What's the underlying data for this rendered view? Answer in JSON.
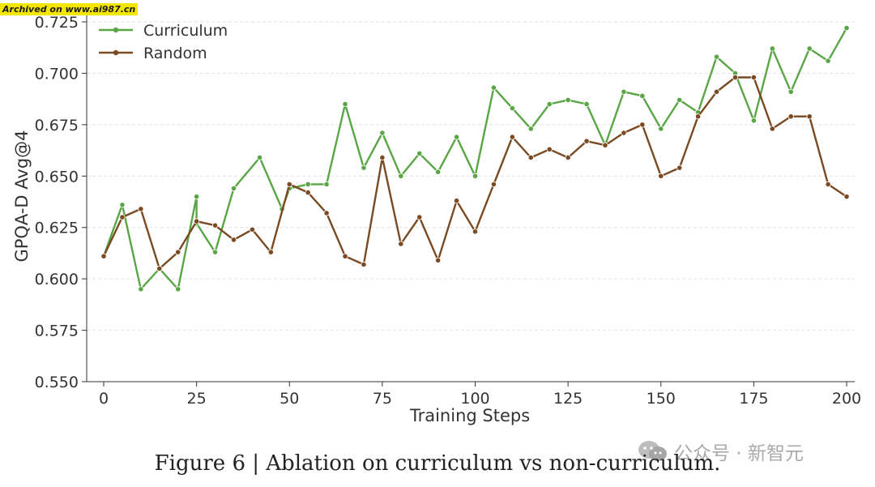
{
  "chart_data": {
    "type": "line",
    "title": "",
    "xlabel": "Training Steps",
    "ylabel": "GPQA-D Avg@4",
    "xlim": [
      0,
      200
    ],
    "ylim": [
      0.55,
      0.725
    ],
    "xticks": [
      0,
      25,
      50,
      75,
      100,
      125,
      150,
      175,
      200
    ],
    "yticks": [
      0.55,
      0.575,
      0.6,
      0.625,
      0.65,
      0.675,
      0.7,
      0.725
    ],
    "ytick_labels": [
      "0.550",
      "0.575",
      "0.600",
      "0.625",
      "0.650",
      "0.675",
      "0.700",
      "0.725"
    ],
    "grid": "horizontal",
    "legend_position": "top-left",
    "series": [
      {
        "name": "Curriculum",
        "color": "#5aa646",
        "points": [
          [
            0,
            0.611
          ],
          [
            5,
            0.636
          ],
          [
            10,
            0.595
          ],
          [
            15,
            0.605
          ],
          [
            20,
            0.595
          ],
          [
            25,
            0.64
          ],
          [
            25,
            0.627
          ],
          [
            30,
            0.613
          ],
          [
            35,
            0.644
          ],
          [
            42,
            0.659
          ],
          [
            48,
            0.634
          ],
          [
            50,
            0.644
          ],
          [
            55,
            0.646
          ],
          [
            60,
            0.646
          ],
          [
            65,
            0.685
          ],
          [
            70,
            0.654
          ],
          [
            75,
            0.671
          ],
          [
            80,
            0.65
          ],
          [
            85,
            0.661
          ],
          [
            90,
            0.652
          ],
          [
            95,
            0.669
          ],
          [
            100,
            0.65
          ],
          [
            105,
            0.693
          ],
          [
            110,
            0.683
          ],
          [
            115,
            0.673
          ],
          [
            120,
            0.685
          ],
          [
            125,
            0.687
          ],
          [
            130,
            0.685
          ],
          [
            135,
            0.665
          ],
          [
            140,
            0.691
          ],
          [
            145,
            0.689
          ],
          [
            150,
            0.673
          ],
          [
            155,
            0.687
          ],
          [
            160,
            0.681
          ],
          [
            165,
            0.708
          ],
          [
            170,
            0.7
          ],
          [
            175,
            0.677
          ],
          [
            180,
            0.712
          ],
          [
            185,
            0.691
          ],
          [
            190,
            0.712
          ],
          [
            195,
            0.706
          ],
          [
            200,
            0.722
          ]
        ]
      },
      {
        "name": "Random",
        "color": "#7a4a22",
        "points": [
          [
            0,
            0.611
          ],
          [
            5,
            0.63
          ],
          [
            10,
            0.634
          ],
          [
            15,
            0.605
          ],
          [
            20,
            0.613
          ],
          [
            25,
            0.628
          ],
          [
            30,
            0.626
          ],
          [
            35,
            0.619
          ],
          [
            40,
            0.624
          ],
          [
            45,
            0.613
          ],
          [
            50,
            0.646
          ],
          [
            55,
            0.642
          ],
          [
            60,
            0.632
          ],
          [
            65,
            0.611
          ],
          [
            70,
            0.607
          ],
          [
            75,
            0.659
          ],
          [
            80,
            0.617
          ],
          [
            85,
            0.63
          ],
          [
            90,
            0.609
          ],
          [
            95,
            0.638
          ],
          [
            100,
            0.623
          ],
          [
            105,
            0.646
          ],
          [
            110,
            0.669
          ],
          [
            115,
            0.659
          ],
          [
            120,
            0.663
          ],
          [
            125,
            0.659
          ],
          [
            130,
            0.667
          ],
          [
            135,
            0.665
          ],
          [
            140,
            0.671
          ],
          [
            145,
            0.675
          ],
          [
            150,
            0.65
          ],
          [
            155,
            0.654
          ],
          [
            160,
            0.679
          ],
          [
            165,
            0.691
          ],
          [
            170,
            0.698
          ],
          [
            175,
            0.698
          ],
          [
            180,
            0.673
          ],
          [
            185,
            0.679
          ],
          [
            190,
            0.679
          ],
          [
            195,
            0.646
          ],
          [
            200,
            0.64
          ]
        ]
      }
    ]
  },
  "caption": "Figure 6 | Ablation on curriculum vs non-curriculum.",
  "archive_stamp": "Archived on www.ai987.cn",
  "watermark_text": "公众号 · 新智元"
}
